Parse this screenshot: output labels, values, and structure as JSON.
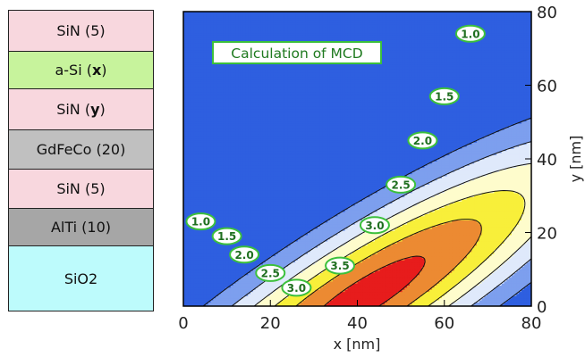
{
  "layer_stack": {
    "layers": [
      {
        "name": "SiN",
        "thickness": "(5)",
        "color": "#f8d7de"
      },
      {
        "name": "a-Si",
        "thickness": "(x)",
        "color": "#c7f39c"
      },
      {
        "name": "SiN",
        "thickness": "(y)",
        "color": "#f8d7de"
      },
      {
        "name": "GdFeCo",
        "thickness": "(20)",
        "color": "#c0c0c0"
      },
      {
        "name": "SiN",
        "thickness": "(5)",
        "color": "#f8d7de"
      },
      {
        "name": "AlTi",
        "thickness": "(10)",
        "color": "#a6a6a6"
      },
      {
        "name": "SiO2",
        "thickness": "",
        "color": "#bdfbfc"
      }
    ]
  },
  "chart_data": {
    "type": "contour",
    "title": "Calculation of MCD",
    "xlabel": "x [nm]",
    "ylabel": "y [nm]",
    "xlim": [
      0,
      80
    ],
    "ylim": [
      0,
      80
    ],
    "xticks": [
      "0",
      "20",
      "40",
      "60",
      "80"
    ],
    "yticks": [
      "0",
      "20",
      "40",
      "60",
      "80"
    ],
    "contour_levels": [
      1.0,
      1.5,
      2.0,
      2.5,
      3.0,
      3.5
    ],
    "fill_colors": [
      "#2e5fe0",
      "#7d9fee",
      "#dfe9fb",
      "#fefccc",
      "#f8ef3a",
      "#ec8a32",
      "#e71c1c"
    ],
    "contour_labels": [
      {
        "text": "1.0",
        "x": 66,
        "y": 74
      },
      {
        "text": "1.5",
        "x": 60,
        "y": 57
      },
      {
        "text": "2.0",
        "x": 55,
        "y": 45
      },
      {
        "text": "2.5",
        "x": 50,
        "y": 33
      },
      {
        "text": "3.0",
        "x": 44,
        "y": 22
      },
      {
        "text": "3.5",
        "x": 36,
        "y": 11
      },
      {
        "text": "1.0",
        "x": 4,
        "y": 23
      },
      {
        "text": "1.5",
        "x": 10,
        "y": 19
      },
      {
        "text": "2.0",
        "x": 14,
        "y": 14
      },
      {
        "text": "2.5",
        "x": 20,
        "y": 9
      },
      {
        "text": "3.0",
        "x": 26,
        "y": 5
      }
    ]
  }
}
